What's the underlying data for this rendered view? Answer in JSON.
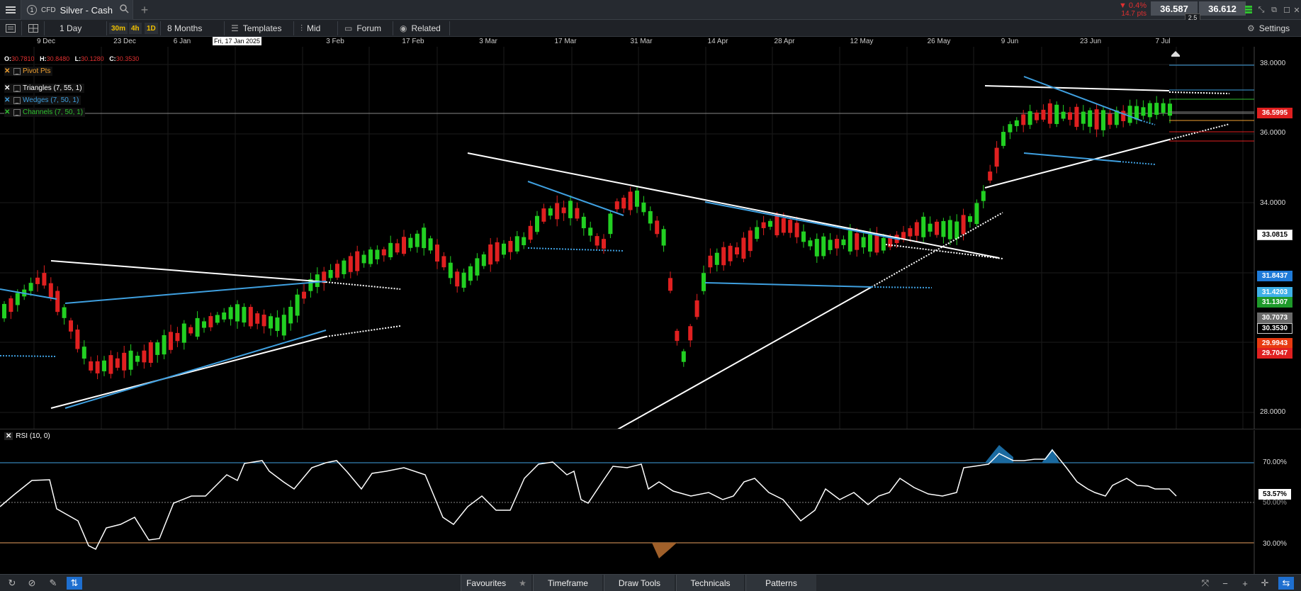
{
  "window": {
    "tab_number": "1",
    "instrument_type": "CFD",
    "instrument_name": "Silver - Cash",
    "change_pct": "▼ 0.4%",
    "change_pts": "14.7 pts",
    "sell_price": "36.587",
    "buy_price": "36.612",
    "spread": "2.5"
  },
  "toolbar": {
    "interval": "1 Day",
    "timeframes": [
      "30m",
      "4h",
      "1D"
    ],
    "range": "8 Months",
    "templates": "Templates",
    "price_type": "Mid",
    "forum": "Forum",
    "related": "Related",
    "settings": "Settings"
  },
  "date_axis": [
    "9 Dec",
    "23 Dec",
    "6 Jan",
    "3 Feb",
    "17 Feb",
    "3 Mar",
    "17 Mar",
    "31 Mar",
    "14 Apr",
    "28 Apr",
    "12 May",
    "26 May",
    "9 Jun",
    "23 Jun",
    "7 Jul"
  ],
  "crosshair_date": "Fri, 17 Jan 2025",
  "ohlc": {
    "o_label": "O:",
    "o": "30.7810",
    "h_label": "H:",
    "h": "30.8480",
    "l_label": "L:",
    "l": "30.1280",
    "c_label": "C:",
    "c": "30.3530"
  },
  "indicators": [
    {
      "label": "Pivot Pts",
      "color": "#f0a030"
    },
    {
      "label": "Triangles (7, 55, 1)",
      "color": "#ffffff"
    },
    {
      "label": "Wedges (7, 50, 1)",
      "color": "#3fa0e0"
    },
    {
      "label": "Channels (7, 50, 1)",
      "color": "#30c030"
    }
  ],
  "price_axis": [
    "38.0000",
    "36.0000",
    "34.0000",
    "28.0000"
  ],
  "price_tags": [
    {
      "value": "36.5995",
      "bg": "#e02020",
      "fg": "#ffffff"
    },
    {
      "value": "33.0815",
      "bg": "#ffffff",
      "fg": "#000000"
    },
    {
      "value": "31.8437",
      "bg": "#1e7ad8",
      "fg": "#ffffff"
    },
    {
      "value": "31.4203",
      "bg": "#3fb0e8",
      "fg": "#ffffff"
    },
    {
      "value": "31.1307",
      "bg": "#1e9a2a",
      "fg": "#ffffff"
    },
    {
      "value": "30.7073",
      "bg": "#6a6a6a",
      "fg": "#ffffff"
    },
    {
      "value": "30.3530",
      "bg": "#000000",
      "fg": "#ffffff"
    },
    {
      "value": "29.9943",
      "bg": "#e83a10",
      "fg": "#ffffff"
    },
    {
      "value": "29.7047",
      "bg": "#e02020",
      "fg": "#ffffff"
    }
  ],
  "rsi": {
    "label": "RSI (10, 0)",
    "levels": [
      "70.00%",
      "50.00%",
      "30.00%"
    ],
    "current": "53.57%"
  },
  "bottom_tabs": [
    "Favourites",
    "Timeframe",
    "Draw Tools",
    "Technicals",
    "Patterns"
  ],
  "colors": {
    "up": "#22d022",
    "down": "#e02020",
    "wedge": "#3fa0e0",
    "triangle": "#ffffff"
  }
}
